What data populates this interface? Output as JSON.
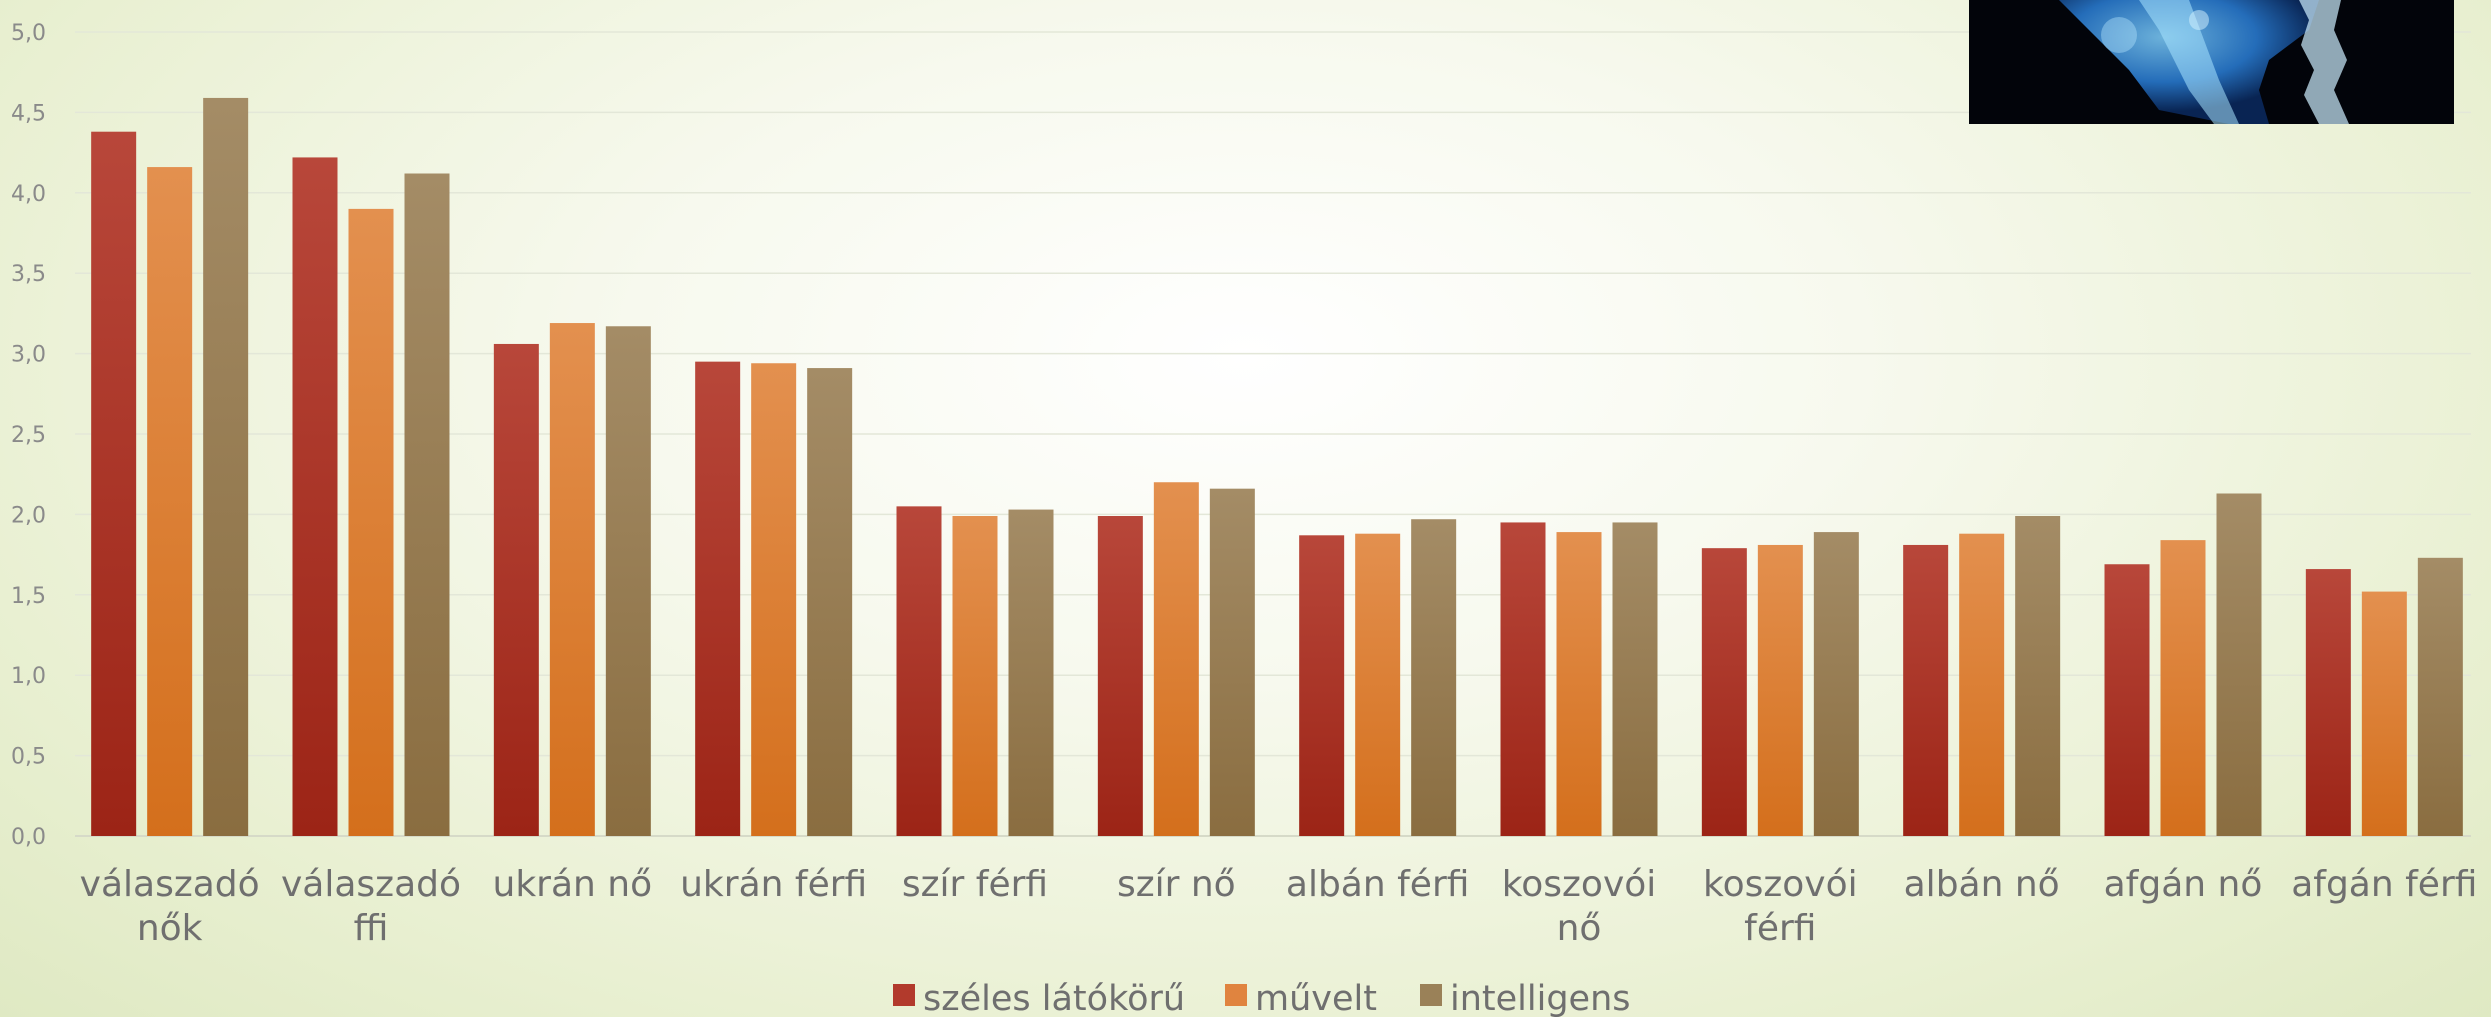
{
  "chart_data": {
    "type": "bar",
    "categories": [
      [
        "válaszadó",
        "nők"
      ],
      [
        "válaszadó",
        "ffi"
      ],
      [
        "ukrán nő"
      ],
      [
        "ukrán férfi"
      ],
      [
        "szír férfi"
      ],
      [
        "szír nő"
      ],
      [
        "albán férfi"
      ],
      [
        "koszovói",
        "nő"
      ],
      [
        "koszovói",
        "férfi"
      ],
      [
        "albán nő"
      ],
      [
        "afgán nő"
      ],
      [
        "afgán férfi"
      ]
    ],
    "series": [
      {
        "name": "széles látókörű",
        "color": "#b23a2c",
        "values": [
          4.38,
          4.22,
          3.06,
          2.95,
          2.05,
          1.99,
          1.87,
          1.95,
          1.79,
          1.81,
          1.69,
          1.66
        ]
      },
      {
        "name": "művelt",
        "color": "#e0843f",
        "values": [
          4.16,
          3.9,
          3.19,
          2.94,
          1.99,
          2.2,
          1.88,
          1.89,
          1.81,
          1.88,
          1.84,
          1.52
        ]
      },
      {
        "name": "intelligens",
        "color": "#9a8158",
        "values": [
          4.59,
          4.12,
          3.17,
          2.91,
          2.03,
          2.16,
          1.97,
          1.95,
          1.89,
          1.99,
          2.13,
          1.73
        ]
      }
    ],
    "yticks": [
      "0,0",
      "0,5",
      "1,0",
      "1,5",
      "2,0",
      "2,5",
      "3,0",
      "3,5",
      "4,0",
      "4,5",
      "5,0"
    ],
    "ylim": [
      0,
      5
    ],
    "grid": true,
    "legend": "bottom"
  }
}
